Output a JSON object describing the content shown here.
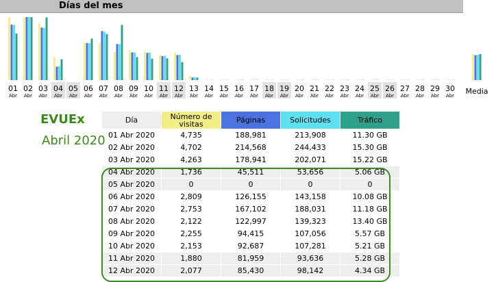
{
  "page": {
    "title": "Días del mes",
    "watermark_line1": "EVUEx",
    "watermark_line2": "Abril 2020"
  },
  "colors": {
    "visits": "#f2ef8a",
    "pages": "#4a72e0",
    "requests": "#5fe0f0",
    "traffic": "#2fa08a",
    "highlight": "#3c8c22"
  },
  "chart_data": {
    "type": "bar",
    "categories": [
      "01",
      "02",
      "03",
      "04",
      "05",
      "06",
      "07",
      "08",
      "09",
      "10",
      "11",
      "12",
      "13",
      "14",
      "15",
      "16",
      "17",
      "18",
      "19",
      "20",
      "21",
      "22",
      "23",
      "24",
      "25",
      "26",
      "27",
      "28",
      "29",
      "30"
    ],
    "category_sublabel": "Abr",
    "weekend_days": [
      "04",
      "05",
      "11",
      "12",
      "18",
      "19",
      "25",
      "26"
    ],
    "average_label": "Media",
    "series": [
      {
        "name": "Número de visitas",
        "values": [
          4735,
          4702,
          4263,
          1736,
          0,
          2809,
          2753,
          2122,
          2255,
          2153,
          1880,
          2077,
          310,
          20,
          20,
          20,
          20,
          20,
          20,
          20,
          20,
          20,
          20,
          20,
          20,
          20,
          20,
          20,
          20,
          20
        ],
        "average": 1950
      },
      {
        "name": "Páginas",
        "values": [
          188981,
          214568,
          178941,
          45511,
          0,
          126155,
          167102,
          122997,
          94415,
          92687,
          81959,
          85430,
          9000,
          500,
          500,
          500,
          500,
          500,
          500,
          500,
          500,
          500,
          500,
          500,
          500,
          500,
          500,
          500,
          500,
          500
        ],
        "average": 85000
      },
      {
        "name": "Solicitudes",
        "values": [
          213908,
          244433,
          202071,
          53656,
          0,
          143158,
          188031,
          139323,
          107056,
          107281,
          93636,
          98142,
          11000,
          600,
          600,
          600,
          600,
          600,
          600,
          600,
          600,
          600,
          600,
          600,
          600,
          600,
          600,
          600,
          600,
          600
        ],
        "average": 98000
      },
      {
        "name": "Tráfico",
        "values": [
          11.3,
          15.3,
          15.22,
          5.06,
          0,
          10.08,
          11.18,
          13.4,
          5.57,
          5.21,
          5.28,
          4.34,
          0.6,
          0.05,
          0.05,
          0.05,
          0.05,
          0.05,
          0.05,
          0.05,
          0.05,
          0.05,
          0.05,
          0.05,
          0.05,
          0.05,
          0.05,
          0.05,
          0.05,
          0.05
        ],
        "average": 6.3
      }
    ]
  },
  "table": {
    "headers": {
      "day": "Día",
      "visits": "Número de visitas",
      "pages": "Páginas",
      "requests": "Solicitudes",
      "traffic": "Tráfico"
    },
    "rows": [
      {
        "day": "01 Abr 2020",
        "visits": "4,735",
        "pages": "188,981",
        "requests": "213,908",
        "traffic": "11.30 GB",
        "weekend": false
      },
      {
        "day": "02 Abr 2020",
        "visits": "4,702",
        "pages": "214,568",
        "requests": "244,433",
        "traffic": "15.30 GB",
        "weekend": false
      },
      {
        "day": "03 Abr 2020",
        "visits": "4,263",
        "pages": "178,941",
        "requests": "202,071",
        "traffic": "15.22 GB",
        "weekend": false
      },
      {
        "day": "04 Abr 2020",
        "visits": "1,736",
        "pages": "45,511",
        "requests": "53,656",
        "traffic": "5.06 GB",
        "weekend": true
      },
      {
        "day": "05 Abr 2020",
        "visits": "0",
        "pages": "0",
        "requests": "0",
        "traffic": "0",
        "weekend": true
      },
      {
        "day": "06 Abr 2020",
        "visits": "2,809",
        "pages": "126,155",
        "requests": "143,158",
        "traffic": "10.08 GB",
        "weekend": false
      },
      {
        "day": "07 Abr 2020",
        "visits": "2,753",
        "pages": "167,102",
        "requests": "188,031",
        "traffic": "11.18 GB",
        "weekend": false
      },
      {
        "day": "08 Abr 2020",
        "visits": "2,122",
        "pages": "122,997",
        "requests": "139,323",
        "traffic": "13.40 GB",
        "weekend": false
      },
      {
        "day": "09 Abr 2020",
        "visits": "2,255",
        "pages": "94,415",
        "requests": "107,056",
        "traffic": "5.57 GB",
        "weekend": false
      },
      {
        "day": "10 Abr 2020",
        "visits": "2,153",
        "pages": "92,687",
        "requests": "107,281",
        "traffic": "5.21 GB",
        "weekend": false
      },
      {
        "day": "11 Abr 2020",
        "visits": "1,880",
        "pages": "81,959",
        "requests": "93,636",
        "traffic": "5.28 GB",
        "weekend": true
      },
      {
        "day": "12 Abr 2020",
        "visits": "2,077",
        "pages": "85,430",
        "requests": "98,142",
        "traffic": "4.34 GB",
        "weekend": true
      }
    ]
  }
}
